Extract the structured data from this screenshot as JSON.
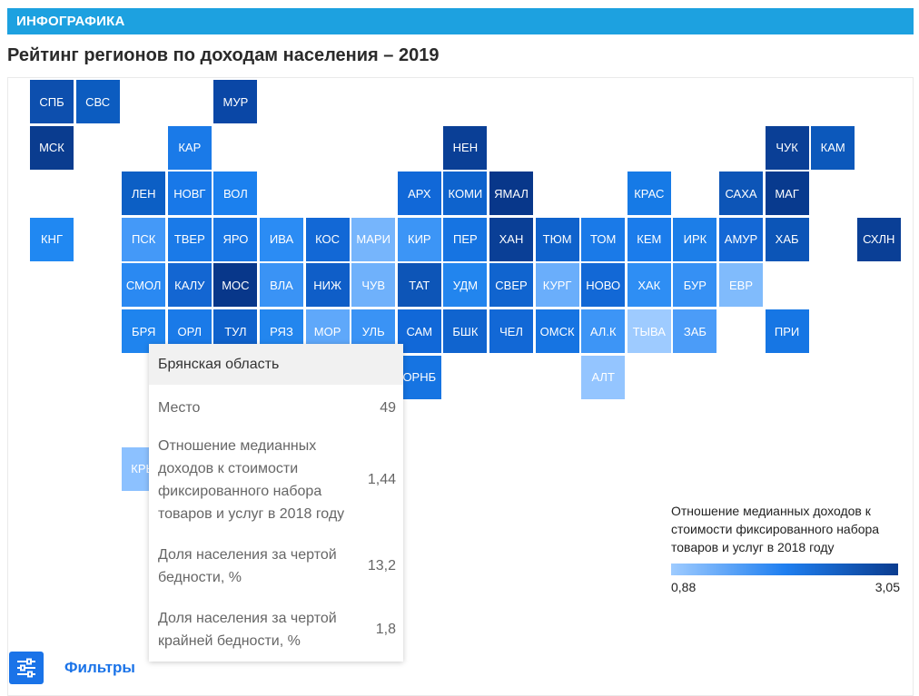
{
  "banner": {
    "label": "ИНФОГРАФИКА"
  },
  "title": "Рейтинг регионов по доходам населения – 2019",
  "tiles": [
    {
      "label": "СПБ",
      "row": 0,
      "col": 0,
      "color": "#0d4fae"
    },
    {
      "label": "СВС",
      "row": 0,
      "col": 1,
      "color": "#0c5cc0"
    },
    {
      "label": "МУР",
      "row": 0,
      "col": 4,
      "color": "#0a47a6"
    },
    {
      "label": "МСК",
      "row": 1,
      "col": 0,
      "color": "#0a3c8f"
    },
    {
      "label": "КАР",
      "row": 1,
      "col": 3,
      "color": "#1a7ae8"
    },
    {
      "label": "НЕН",
      "row": 1,
      "col": 9,
      "color": "#0a3f96"
    },
    {
      "label": "ЧУК",
      "row": 1,
      "col": 16,
      "color": "#0a3f96"
    },
    {
      "label": "КАМ",
      "row": 1,
      "col": 17,
      "color": "#0c58bb"
    },
    {
      "label": "ЛЕН",
      "row": 2,
      "col": 2,
      "color": "#0c5fc5"
    },
    {
      "label": "НОВГ",
      "row": 2,
      "col": 3,
      "color": "#1878e8"
    },
    {
      "label": "ВОЛ",
      "row": 2,
      "col": 4,
      "color": "#1b80ee"
    },
    {
      "label": "АРХ",
      "row": 2,
      "col": 8,
      "color": "#1168d8"
    },
    {
      "label": "КОМИ",
      "row": 2,
      "col": 9,
      "color": "#0e63cd"
    },
    {
      "label": "ЯМАЛ",
      "row": 2,
      "col": 10,
      "color": "#08378a"
    },
    {
      "label": "КРАС",
      "row": 2,
      "col": 13,
      "color": "#167ae6"
    },
    {
      "label": "САХА",
      "row": 2,
      "col": 15,
      "color": "#0d55b7"
    },
    {
      "label": "МАГ",
      "row": 2,
      "col": 16,
      "color": "#083a8e"
    },
    {
      "label": "КНГ",
      "row": 3,
      "col": 0,
      "color": "#2088f2"
    },
    {
      "label": "ПСК",
      "row": 3,
      "col": 2,
      "color": "#4499f8"
    },
    {
      "label": "ТВЕР",
      "row": 3,
      "col": 3,
      "color": "#1a7ae8"
    },
    {
      "label": "ЯРО",
      "row": 3,
      "col": 4,
      "color": "#1876e4"
    },
    {
      "label": "ИВА",
      "row": 3,
      "col": 5,
      "color": "#2b8cf4"
    },
    {
      "label": "КОС",
      "row": 3,
      "col": 6,
      "color": "#1268d6"
    },
    {
      "label": "МАРИ",
      "row": 3,
      "col": 7,
      "color": "#76b5fc"
    },
    {
      "label": "КИР",
      "row": 3,
      "col": 8,
      "color": "#3c95f6"
    },
    {
      "label": "ПЕР",
      "row": 3,
      "col": 9,
      "color": "#1674e2"
    },
    {
      "label": "ХАН",
      "row": 3,
      "col": 10,
      "color": "#0a3f96"
    },
    {
      "label": "ТЮМ",
      "row": 3,
      "col": 11,
      "color": "#0f62cc"
    },
    {
      "label": "ТОМ",
      "row": 3,
      "col": 12,
      "color": "#1a7ae8"
    },
    {
      "label": "КЕМ",
      "row": 3,
      "col": 13,
      "color": "#1b7ceb"
    },
    {
      "label": "ИРК",
      "row": 3,
      "col": 14,
      "color": "#1c7ee8"
    },
    {
      "label": "АМУР",
      "row": 3,
      "col": 15,
      "color": "#1468d6"
    },
    {
      "label": "ХАБ",
      "row": 3,
      "col": 16,
      "color": "#0c55b7"
    },
    {
      "label": "СХЛН",
      "row": 3,
      "col": 18,
      "color": "#0a3f96"
    },
    {
      "label": "СМОЛ",
      "row": 4,
      "col": 2,
      "color": "#2a89f2"
    },
    {
      "label": "КАЛУ",
      "row": 4,
      "col": 3,
      "color": "#1366d2"
    },
    {
      "label": "МОС",
      "row": 4,
      "col": 4,
      "color": "#08378a"
    },
    {
      "label": "ВЛА",
      "row": 4,
      "col": 5,
      "color": "#3a93f5"
    },
    {
      "label": "НИЖ",
      "row": 4,
      "col": 6,
      "color": "#0f5ec8"
    },
    {
      "label": "ЧУВ",
      "row": 4,
      "col": 7,
      "color": "#6fb1fb"
    },
    {
      "label": "ТАТ",
      "row": 4,
      "col": 8,
      "color": "#0d55b7"
    },
    {
      "label": "УДМ",
      "row": 4,
      "col": 9,
      "color": "#2285ee"
    },
    {
      "label": "СВЕР",
      "row": 4,
      "col": 10,
      "color": "#1064cf"
    },
    {
      "label": "КУРГ",
      "row": 4,
      "col": 11,
      "color": "#6aaefb"
    },
    {
      "label": "НОВО",
      "row": 4,
      "col": 12,
      "color": "#1268d6"
    },
    {
      "label": "ХАК",
      "row": 4,
      "col": 13,
      "color": "#2e8ef4"
    },
    {
      "label": "БУР",
      "row": 4,
      "col": 14,
      "color": "#3590f4"
    },
    {
      "label": "ЕВР",
      "row": 4,
      "col": 15,
      "color": "#80bbfc"
    },
    {
      "label": "БРЯ",
      "row": 5,
      "col": 2,
      "color": "#1f84ee"
    },
    {
      "label": "ОРЛ",
      "row": 5,
      "col": 3,
      "color": "#1a7ae8"
    },
    {
      "label": "ТУЛ",
      "row": 5,
      "col": 4,
      "color": "#0f62cc"
    },
    {
      "label": "РЯЗ",
      "row": 5,
      "col": 5,
      "color": "#2386ee"
    },
    {
      "label": "МОР",
      "row": 5,
      "col": 6,
      "color": "#5fa8fa"
    },
    {
      "label": "УЛЬ",
      "row": 5,
      "col": 7,
      "color": "#3a93f5"
    },
    {
      "label": "САМ",
      "row": 5,
      "col": 8,
      "color": "#1168d8"
    },
    {
      "label": "БШК",
      "row": 5,
      "col": 9,
      "color": "#1064cf"
    },
    {
      "label": "ЧЕЛ",
      "row": 5,
      "col": 10,
      "color": "#1268d6"
    },
    {
      "label": "ОМСК",
      "row": 5,
      "col": 11,
      "color": "#1674e2"
    },
    {
      "label": "АЛ.К",
      "row": 5,
      "col": 12,
      "color": "#3d95f6"
    },
    {
      "label": "ТЫВА",
      "row": 5,
      "col": 13,
      "color": "#9ecbff"
    },
    {
      "label": "ЗАБ",
      "row": 5,
      "col": 14,
      "color": "#4b9cf8"
    },
    {
      "label": "ПРИ",
      "row": 5,
      "col": 16,
      "color": "#1676e4"
    },
    {
      "label": "ОРНБ",
      "row": 6,
      "col": 8,
      "color": "#1674e2"
    },
    {
      "label": "АЛТ",
      "row": 6,
      "col": 12,
      "color": "#94c5ff"
    },
    {
      "label": "КРЫ",
      "row": 8,
      "col": 2,
      "color": "#8cc1ff"
    }
  ],
  "tooltip": {
    "region": "Брянская область",
    "rows": [
      {
        "label": "Место",
        "value": "49"
      },
      {
        "label": "Отношение медианных доходов к стоимости фиксированного набора товаров и услуг в 2018 году",
        "value": "1,44"
      },
      {
        "label": "Доля населения за чертой бедности, %",
        "value": "13,2"
      },
      {
        "label": "Доля населения за чертой крайней бедности, %",
        "value": "1,8"
      }
    ]
  },
  "legend": {
    "title": "Отношение медианных доходов к стоимости фиксированного набора товаров и услуг в 2018 году",
    "min": "0,88",
    "max": "3,05",
    "colors": {
      "low": "#9ecbff",
      "mid": "#1f7ff0",
      "high": "#0a3c8f"
    }
  },
  "filters": {
    "label": "Фильтры",
    "icon": "sliders-icon"
  }
}
